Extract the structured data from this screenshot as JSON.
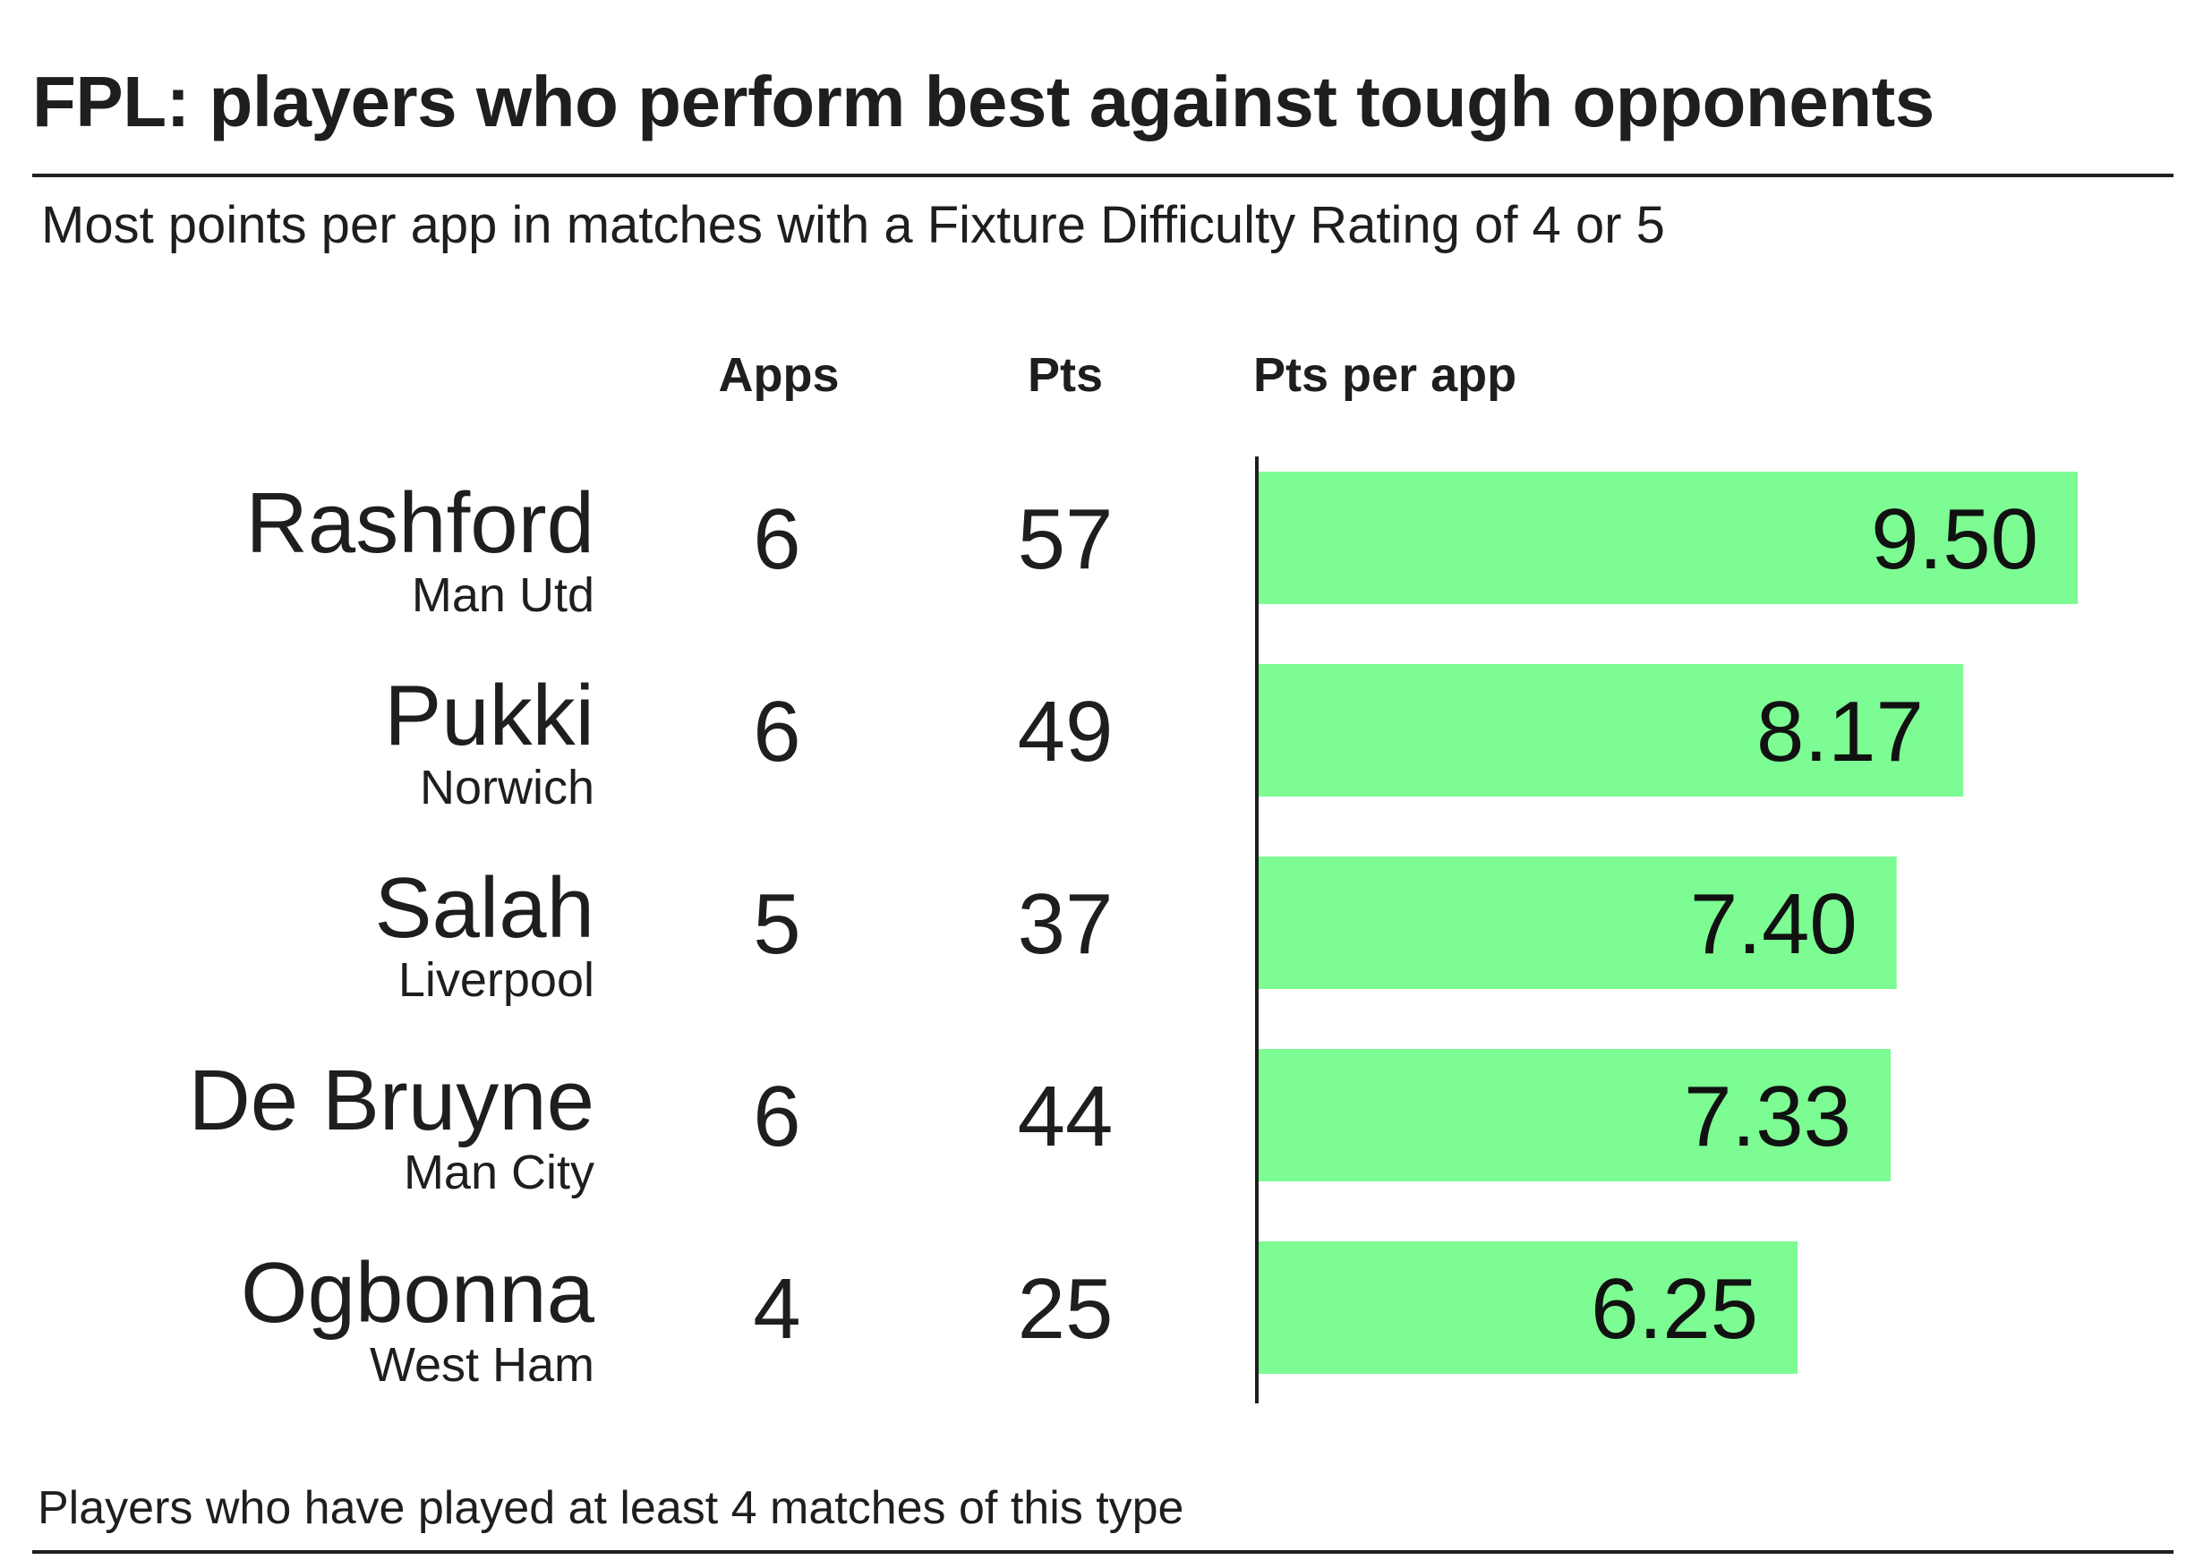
{
  "title": "FPL: players who perform best against tough opponents",
  "subtitle": "Most points per app in matches with a Fixture Difficulty Rating of 4 or 5",
  "footnote": "Players who have played at least 4 matches of this type",
  "colors": {
    "bar": "#7cfc93",
    "text": "#1e1e1e",
    "rule": "#1e1e1e"
  },
  "chart_data": {
    "type": "bar",
    "orientation": "horizontal",
    "columns": {
      "apps": "Apps",
      "pts": "Pts",
      "pts_per_app": "Pts per app"
    },
    "xlim": [
      0,
      9.5
    ],
    "grid": false,
    "legend": "none",
    "rows": [
      {
        "player": "Rashford",
        "team": "Man Utd",
        "apps": 6,
        "pts": 57,
        "pts_per_app": 9.5,
        "label": "9.50"
      },
      {
        "player": "Pukki",
        "team": "Norwich",
        "apps": 6,
        "pts": 49,
        "pts_per_app": 8.17,
        "label": "8.17"
      },
      {
        "player": "Salah",
        "team": "Liverpool",
        "apps": 5,
        "pts": 37,
        "pts_per_app": 7.4,
        "label": "7.40"
      },
      {
        "player": "De Bruyne",
        "team": "Man City",
        "apps": 6,
        "pts": 44,
        "pts_per_app": 7.33,
        "label": "7.33"
      },
      {
        "player": "Ogbonna",
        "team": "West Ham",
        "apps": 4,
        "pts": 25,
        "pts_per_app": 6.25,
        "label": "6.25"
      }
    ]
  }
}
